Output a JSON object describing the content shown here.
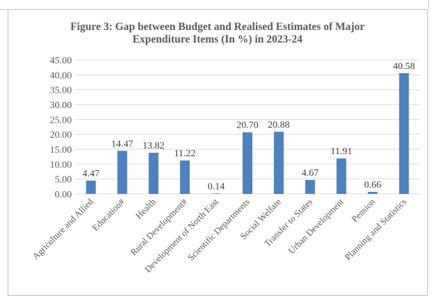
{
  "chart_data": {
    "type": "bar",
    "title": "Figure 3: Gap between Budget and Realised Estimates of Major Expenditure Items (In %) in 2023-24",
    "title_lines": [
      "Figure 3: Gap between Budget and Realised Estimates of Major",
      "Expenditure Items (In %) in 2023-24"
    ],
    "categories": [
      "Agriculture and Allied",
      "Education#",
      "Health",
      "Rural Development#",
      "Development of North East",
      "Scientific Departments",
      "Social Welfare",
      "Transfer to States",
      "Urban Development",
      "Pension",
      "Planning and Statistics"
    ],
    "values": [
      4.47,
      14.47,
      13.82,
      11.22,
      0.14,
      20.7,
      20.88,
      4.67,
      11.91,
      0.66,
      40.58
    ],
    "data_labels": [
      "4.47",
      "14.47",
      "13.82",
      "11.22",
      "0.14",
      "20.70",
      "20.88",
      "4.67",
      "11.91",
      "0.66",
      "40.58"
    ],
    "yticks": [
      "0.00",
      "5.00",
      "10.00",
      "15.00",
      "20.00",
      "25.00",
      "30.00",
      "35.00",
      "40.00",
      "45.00"
    ],
    "ylim": [
      0,
      45
    ],
    "xlabel": "",
    "ylabel": "",
    "grid": true,
    "legend": "none",
    "colors": {
      "bar": "#4f81bd",
      "grid": "#d9d9d9"
    }
  }
}
